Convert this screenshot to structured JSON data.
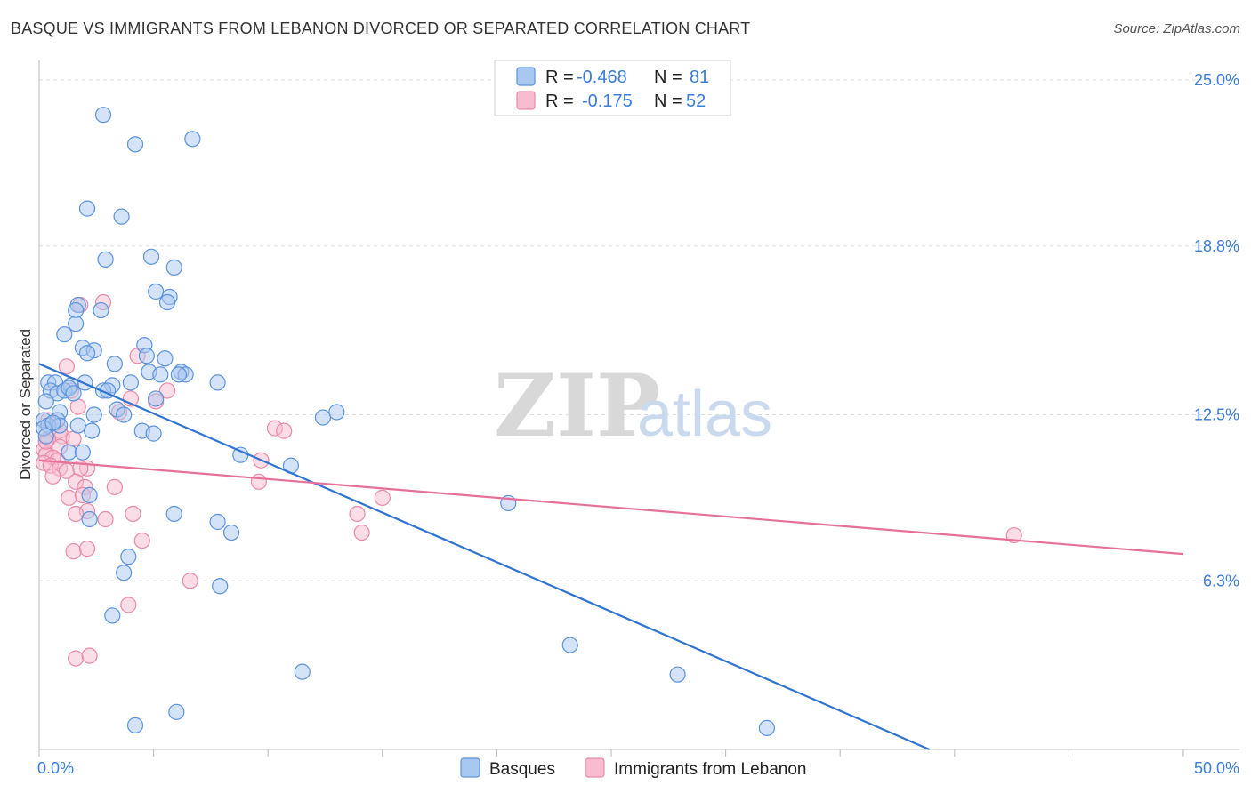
{
  "title": "BASQUE VS IMMIGRANTS FROM LEBANON DIVORCED OR SEPARATED CORRELATION CHART",
  "source": "Source: ZipAtlas.com",
  "watermark": {
    "zip": "ZIP",
    "atlas": "atlas"
  },
  "colors": {
    "blue_fill": "#a9c8f0",
    "blue_stroke": "#5b93dc",
    "blue_line": "#2f74d0",
    "pink_fill": "#f7bcd0",
    "pink_stroke": "#e98aa9",
    "pink_line": "#e5709a",
    "tick": "#3b7dd8",
    "grid": "#dddddd"
  },
  "legend": {
    "rows": [
      {
        "r_label": "R =",
        "r_value": "-0.468",
        "n_label": "N =",
        "n_value": "81"
      },
      {
        "r_label": "R =",
        "r_value": "-0.175",
        "n_label": "N =",
        "n_value": "52"
      }
    ]
  },
  "chart_data": {
    "type": "scatter",
    "title": "BASQUE VS IMMIGRANTS FROM LEBANON DIVORCED OR SEPARATED CORRELATION CHART",
    "xlabel": "",
    "ylabel": "Divorced or Separated",
    "xlim": [
      0,
      50
    ],
    "ylim": [
      0,
      25.5
    ],
    "x_tick_labels": [
      "0.0%",
      "50.0%"
    ],
    "y_ticks": [
      6.3,
      12.5,
      18.8,
      25.0
    ],
    "y_tick_labels": [
      "6.3%",
      "12.5%",
      "18.8%",
      "25.0%"
    ],
    "legend_position": "bottom",
    "series": [
      {
        "name": "Basques",
        "trend": {
          "x": [
            0,
            38.9
          ],
          "y": [
            14.4,
            0
          ]
        },
        "points": [
          [
            2.8,
            23.7
          ],
          [
            4.2,
            22.6
          ],
          [
            6.7,
            22.8
          ],
          [
            2.1,
            20.2
          ],
          [
            3.6,
            19.9
          ],
          [
            2.9,
            18.3
          ],
          [
            4.9,
            18.4
          ],
          [
            5.9,
            18.0
          ],
          [
            5.1,
            17.1
          ],
          [
            5.7,
            16.9
          ],
          [
            5.6,
            16.7
          ],
          [
            1.7,
            16.6
          ],
          [
            1.6,
            16.4
          ],
          [
            2.7,
            16.4
          ],
          [
            1.6,
            15.9
          ],
          [
            1.1,
            15.5
          ],
          [
            1.9,
            15.0
          ],
          [
            2.4,
            14.9
          ],
          [
            2.1,
            14.8
          ],
          [
            4.6,
            15.1
          ],
          [
            4.7,
            14.7
          ],
          [
            5.5,
            14.6
          ],
          [
            3.3,
            14.4
          ],
          [
            6.2,
            14.1
          ],
          [
            4.8,
            14.1
          ],
          [
            6.4,
            14.0
          ],
          [
            5.3,
            14.0
          ],
          [
            0.4,
            13.7
          ],
          [
            0.7,
            13.7
          ],
          [
            1.4,
            13.6
          ],
          [
            2.0,
            13.7
          ],
          [
            3.2,
            13.6
          ],
          [
            4.0,
            13.7
          ],
          [
            7.8,
            13.7
          ],
          [
            0.5,
            13.4
          ],
          [
            0.8,
            13.3
          ],
          [
            1.1,
            13.4
          ],
          [
            1.3,
            13.5
          ],
          [
            2.8,
            13.4
          ],
          [
            3.0,
            13.4
          ],
          [
            5.1,
            13.1
          ],
          [
            0.3,
            13.0
          ],
          [
            0.9,
            12.6
          ],
          [
            3.4,
            12.7
          ],
          [
            0.2,
            12.3
          ],
          [
            0.8,
            12.3
          ],
          [
            2.4,
            12.5
          ],
          [
            12.4,
            12.4
          ],
          [
            13.0,
            12.6
          ],
          [
            0.4,
            12.1
          ],
          [
            0.9,
            12.1
          ],
          [
            1.7,
            12.1
          ],
          [
            0.2,
            12.0
          ],
          [
            0.3,
            11.7
          ],
          [
            4.5,
            11.9
          ],
          [
            5.0,
            11.8
          ],
          [
            2.3,
            11.9
          ],
          [
            1.3,
            11.1
          ],
          [
            1.9,
            11.1
          ],
          [
            8.8,
            11.0
          ],
          [
            11.0,
            10.6
          ],
          [
            20.5,
            9.2
          ],
          [
            2.2,
            9.5
          ],
          [
            2.2,
            8.6
          ],
          [
            5.9,
            8.8
          ],
          [
            7.8,
            8.5
          ],
          [
            8.4,
            8.1
          ],
          [
            3.9,
            7.2
          ],
          [
            3.7,
            6.6
          ],
          [
            7.9,
            6.1
          ],
          [
            3.2,
            5.0
          ],
          [
            23.2,
            3.9
          ],
          [
            11.5,
            2.9
          ],
          [
            27.9,
            2.8
          ],
          [
            6.0,
            1.4
          ],
          [
            4.2,
            0.9
          ],
          [
            31.8,
            0.8
          ],
          [
            0.6,
            12.2
          ],
          [
            1.5,
            13.3
          ],
          [
            6.1,
            14.0
          ],
          [
            3.7,
            12.5
          ]
        ]
      },
      {
        "name": "Immigrants from Lebanon",
        "trend": {
          "x": [
            0,
            50
          ],
          "y": [
            10.8,
            7.3
          ]
        },
        "points": [
          [
            2.8,
            16.7
          ],
          [
            1.8,
            16.6
          ],
          [
            4.3,
            14.7
          ],
          [
            1.2,
            14.3
          ],
          [
            1.4,
            13.4
          ],
          [
            5.6,
            13.4
          ],
          [
            5.1,
            13.0
          ],
          [
            4.0,
            13.1
          ],
          [
            1.7,
            12.8
          ],
          [
            3.5,
            12.6
          ],
          [
            10.3,
            12.0
          ],
          [
            10.7,
            11.9
          ],
          [
            0.4,
            12.3
          ],
          [
            0.9,
            11.9
          ],
          [
            1.0,
            11.7
          ],
          [
            0.4,
            11.6
          ],
          [
            0.9,
            11.3
          ],
          [
            1.5,
            11.6
          ],
          [
            0.2,
            11.2
          ],
          [
            0.3,
            11.0
          ],
          [
            0.6,
            10.9
          ],
          [
            0.8,
            10.8
          ],
          [
            0.2,
            10.7
          ],
          [
            0.5,
            10.6
          ],
          [
            0.9,
            10.5
          ],
          [
            1.2,
            10.4
          ],
          [
            0.6,
            10.2
          ],
          [
            9.7,
            10.8
          ],
          [
            9.6,
            10.0
          ],
          [
            2.1,
            10.5
          ],
          [
            1.8,
            10.5
          ],
          [
            1.6,
            10.0
          ],
          [
            2.0,
            9.8
          ],
          [
            3.3,
            9.8
          ],
          [
            1.3,
            9.4
          ],
          [
            1.9,
            9.5
          ],
          [
            2.1,
            8.9
          ],
          [
            1.6,
            8.8
          ],
          [
            2.9,
            8.6
          ],
          [
            4.1,
            8.8
          ],
          [
            13.9,
            8.8
          ],
          [
            15.0,
            9.4
          ],
          [
            14.1,
            8.1
          ],
          [
            42.6,
            8.0
          ],
          [
            4.5,
            7.8
          ],
          [
            1.5,
            7.4
          ],
          [
            2.1,
            7.5
          ],
          [
            6.6,
            6.3
          ],
          [
            3.9,
            5.4
          ],
          [
            1.6,
            3.4
          ],
          [
            2.2,
            3.5
          ],
          [
            0.3,
            11.5
          ]
        ]
      }
    ]
  },
  "bottom_legend": [
    {
      "label": "Basques"
    },
    {
      "label": "Immigrants from Lebanon"
    }
  ]
}
